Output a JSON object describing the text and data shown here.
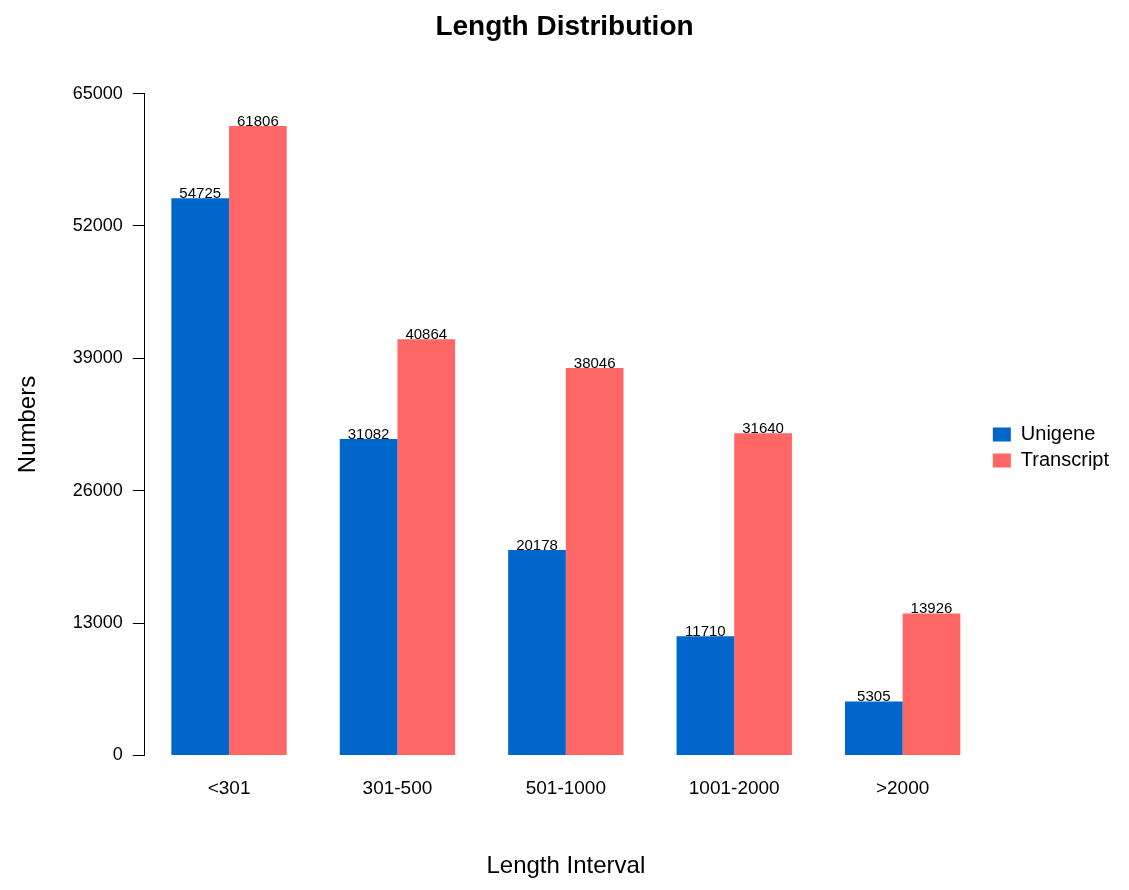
{
  "chart_data": {
    "type": "bar",
    "title": "Length Distribution",
    "xlabel": "Length Interval",
    "ylabel": "Numbers",
    "categories": [
      "<301",
      "301-500",
      "501-1000",
      "1001-2000",
      ">2000"
    ],
    "series": [
      {
        "name": "Unigene",
        "color": "#0066cc",
        "values": [
          54725,
          31082,
          20178,
          11710,
          5305
        ]
      },
      {
        "name": "Transcript",
        "color": "#ff6666",
        "values": [
          61806,
          40864,
          38046,
          31640,
          13926
        ]
      }
    ],
    "ylim": [
      0,
      65000
    ],
    "yticks": [
      0,
      13000,
      26000,
      39000,
      52000,
      65000
    ],
    "data_labels": true,
    "legend": "right",
    "grid": false
  }
}
